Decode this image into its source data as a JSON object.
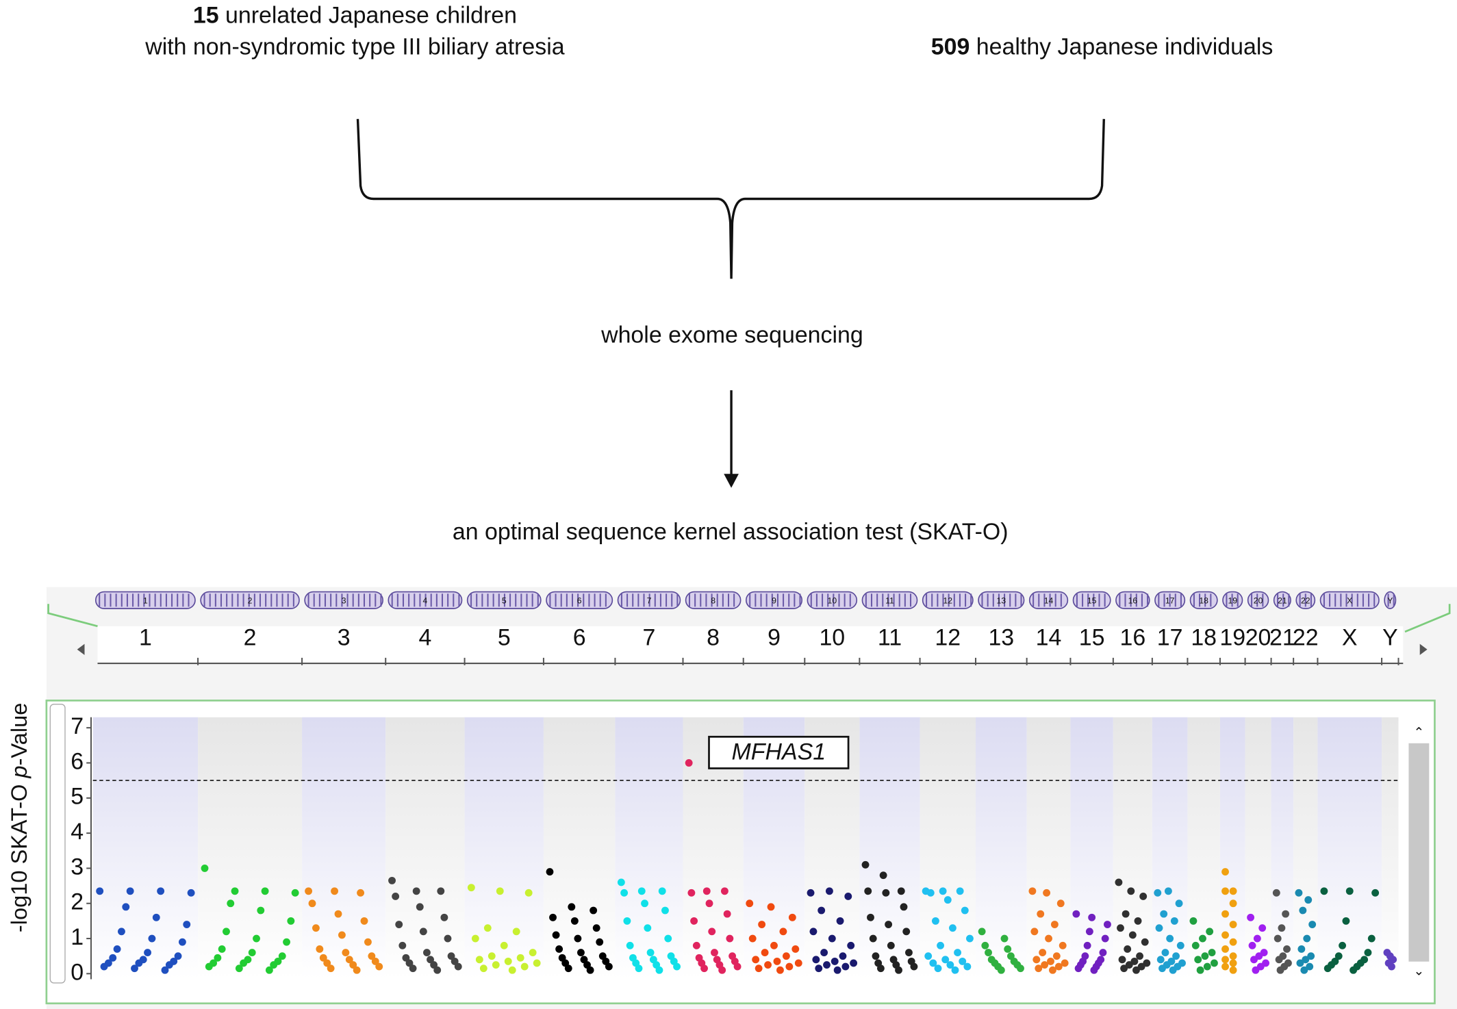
{
  "header": {
    "cases": {
      "count": 15,
      "line1": "unrelated Japanese children",
      "line2": "with non-syndromic type III biliary atresia"
    },
    "controls": {
      "count": 509,
      "text": "healthy Japanese individuals"
    }
  },
  "steps": [
    "whole exome sequencing",
    "an optimal sequence kernel association test (SKAT-O)"
  ],
  "chart_data": {
    "type": "manhattan",
    "ylabel": {
      "before": "-log10 SKAT-O ",
      "italic": "p",
      "after": "-Value"
    },
    "categories": [
      "1",
      "2",
      "3",
      "4",
      "5",
      "6",
      "7",
      "8",
      "9",
      "10",
      "11",
      "12",
      "13",
      "14",
      "15",
      "16",
      "17",
      "18",
      "19",
      "20",
      "21",
      "22",
      "X",
      "Y"
    ],
    "colors": [
      "#1f4fbf",
      "#22cc33",
      "#f08a1c",
      "#444444",
      "#c8f030",
      "#000000",
      "#10e0e8",
      "#e0245e",
      "#f04a10",
      "#1a1a6e",
      "#222222",
      "#20c0f0",
      "#30b040",
      "#f07820",
      "#7020c0",
      "#303030",
      "#20a0d0",
      "#20a040",
      "#f0a010",
      "#a020f0",
      "#555555",
      "#1a8ab0",
      "#0a6040",
      "#6040c0"
    ],
    "ylim": [
      0,
      7.3
    ],
    "yticks": [
      0,
      1,
      2,
      3,
      4,
      5,
      6,
      7
    ],
    "threshold": 5.5,
    "annotation": "MFHAS1",
    "values": [
      [
        2.35,
        2.35,
        2.35,
        2.3,
        1.9,
        1.6,
        1.4,
        1.2,
        1.0,
        0.9,
        0.7,
        0.6,
        0.5,
        0.45,
        0.4,
        0.35,
        0.3,
        0.3,
        0.25,
        0.2,
        0.15,
        0.1
      ],
      [
        3.0,
        2.35,
        2.35,
        2.3,
        2.0,
        1.8,
        1.5,
        1.2,
        1.0,
        0.9,
        0.7,
        0.6,
        0.5,
        0.45,
        0.4,
        0.35,
        0.3,
        0.3,
        0.25,
        0.2,
        0.15,
        0.1
      ],
      [
        2.35,
        2.35,
        2.3,
        2.0,
        1.7,
        1.5,
        1.3,
        1.1,
        0.9,
        0.7,
        0.6,
        0.5,
        0.45,
        0.4,
        0.35,
        0.3,
        0.25,
        0.2,
        0.15,
        0.1
      ],
      [
        2.65,
        2.35,
        2.35,
        2.2,
        1.9,
        1.6,
        1.4,
        1.2,
        1.0,
        0.8,
        0.6,
        0.5,
        0.45,
        0.4,
        0.35,
        0.3,
        0.25,
        0.2,
        0.15,
        0.1
      ],
      [
        2.45,
        2.35,
        2.3,
        1.3,
        1.2,
        1.0,
        0.8,
        0.6,
        0.5,
        0.45,
        0.4,
        0.35,
        0.3,
        0.25,
        0.2,
        0.15,
        0.1
      ],
      [
        2.9,
        1.9,
        1.8,
        1.6,
        1.5,
        1.3,
        1.1,
        1.0,
        0.9,
        0.7,
        0.6,
        0.5,
        0.45,
        0.4,
        0.35,
        0.3,
        0.25,
        0.2,
        0.15,
        0.1
      ],
      [
        2.6,
        2.35,
        2.35,
        2.3,
        2.0,
        1.8,
        1.5,
        1.3,
        1.0,
        0.8,
        0.6,
        0.5,
        0.45,
        0.4,
        0.35,
        0.3,
        0.25,
        0.2,
        0.15,
        0.1
      ],
      [
        6.0,
        2.35,
        2.35,
        2.3,
        2.0,
        1.7,
        1.5,
        1.2,
        1.0,
        0.8,
        0.6,
        0.5,
        0.45,
        0.4,
        0.35,
        0.3,
        0.25,
        0.2,
        0.15,
        0.1
      ],
      [
        2.0,
        1.9,
        1.6,
        1.4,
        1.2,
        1.0,
        0.8,
        0.7,
        0.6,
        0.5,
        0.4,
        0.35,
        0.3,
        0.25,
        0.2,
        0.15,
        0.1
      ],
      [
        2.3,
        2.35,
        2.2,
        1.8,
        1.5,
        1.2,
        1.0,
        0.8,
        0.6,
        0.5,
        0.4,
        0.35,
        0.3,
        0.25,
        0.2,
        0.15,
        0.1
      ],
      [
        3.1,
        2.8,
        2.35,
        2.35,
        2.3,
        1.9,
        1.6,
        1.4,
        1.2,
        1.0,
        0.8,
        0.6,
        0.5,
        0.4,
        0.35,
        0.3,
        0.25,
        0.2,
        0.15,
        0.1
      ],
      [
        2.35,
        2.35,
        2.35,
        2.3,
        2.1,
        1.8,
        1.5,
        1.3,
        1.0,
        0.8,
        0.6,
        0.5,
        0.4,
        0.35,
        0.3,
        0.25,
        0.2,
        0.15,
        0.1
      ],
      [
        1.2,
        1.0,
        0.8,
        0.7,
        0.6,
        0.5,
        0.4,
        0.35,
        0.3,
        0.25,
        0.2,
        0.15,
        0.1
      ],
      [
        2.35,
        2.3,
        2.0,
        1.7,
        1.4,
        1.2,
        1.0,
        0.8,
        0.6,
        0.5,
        0.4,
        0.35,
        0.3,
        0.25,
        0.2,
        0.15,
        0.1
      ],
      [
        1.7,
        1.6,
        1.4,
        1.2,
        1.0,
        0.8,
        0.6,
        0.5,
        0.4,
        0.35,
        0.3,
        0.25,
        0.2,
        0.15,
        0.1
      ],
      [
        2.6,
        2.35,
        2.2,
        1.7,
        1.5,
        1.3,
        1.1,
        0.9,
        0.7,
        0.5,
        0.4,
        0.35,
        0.3,
        0.25,
        0.2,
        0.15,
        0.1
      ],
      [
        2.3,
        2.35,
        2.0,
        1.7,
        1.5,
        1.3,
        1.0,
        0.8,
        0.6,
        0.5,
        0.4,
        0.35,
        0.3,
        0.25,
        0.2,
        0.15,
        0.1
      ],
      [
        1.5,
        1.2,
        1.0,
        0.8,
        0.6,
        0.5,
        0.4,
        0.3,
        0.2,
        0.1
      ],
      [
        2.9,
        2.35,
        2.35,
        2.0,
        1.7,
        1.4,
        1.1,
        0.9,
        0.7,
        0.5,
        0.4,
        0.3,
        0.2,
        0.1
      ],
      [
        1.6,
        1.3,
        1.0,
        0.8,
        0.6,
        0.5,
        0.4,
        0.3,
        0.2,
        0.1
      ],
      [
        2.3,
        1.7,
        1.3,
        1.0,
        0.7,
        0.5,
        0.4,
        0.3,
        0.2,
        0.1
      ],
      [
        2.3,
        2.1,
        1.8,
        1.4,
        1.0,
        0.7,
        0.5,
        0.4,
        0.3,
        0.2,
        0.1
      ],
      [
        2.35,
        2.35,
        2.3,
        1.5,
        1.0,
        0.8,
        0.6,
        0.5,
        0.4,
        0.35,
        0.3,
        0.25,
        0.2,
        0.15,
        0.1
      ],
      [
        0.6,
        0.5,
        0.4,
        0.3,
        0.2
      ]
    ]
  }
}
